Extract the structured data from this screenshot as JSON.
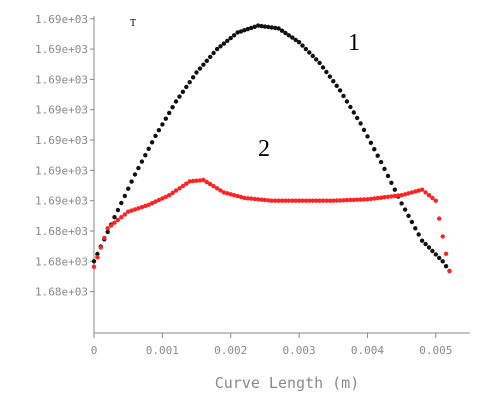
{
  "chart_data": {
    "type": "scatter",
    "xlabel": "Curve Length (m)",
    "ylabel": "",
    "xlim": [
      0,
      0.0055
    ],
    "ylim": [
      1675,
      1698
    ],
    "x_ticks": [
      0,
      0.001,
      0.002,
      0.003,
      0.004,
      0.005
    ],
    "x_tick_labels": [
      "0",
      "0.001",
      "0.002",
      "0.003",
      "0.004",
      "0.005"
    ],
    "y_ticks": [
      1678,
      1680.2,
      1682.4,
      1684.6,
      1686.8,
      1689,
      1691.2,
      1693.4,
      1695.6,
      1697.8
    ],
    "y_tick_labels": [
      "1.68e+03",
      "1.68e+03",
      "1.68e+03",
      "1.69e+03",
      "1.69e+03",
      "1.69e+03",
      "1.69e+03",
      "1.69e+03",
      "1.69e+03",
      "1.69e+03"
    ],
    "annotations": {
      "corner": "T",
      "curve1": "1",
      "curve2": "2"
    },
    "series": [
      {
        "color": "#111111",
        "x": [
          0.0,
          0.0003,
          0.0006,
          0.0009,
          0.0012,
          0.0015,
          0.0018,
          0.0021,
          0.0024,
          0.0027,
          0.003,
          0.0033,
          0.0036,
          0.0039,
          0.0042,
          0.0045,
          0.0048,
          0.0051,
          0.0052
        ],
        "y": [
          1680.2,
          1683.4,
          1686.5,
          1689.3,
          1691.8,
          1693.9,
          1695.6,
          1696.8,
          1697.3,
          1697.1,
          1696.1,
          1694.6,
          1692.6,
          1690.2,
          1687.4,
          1684.4,
          1681.7,
          1680.2,
          1679.5
        ]
      },
      {
        "color": "#ff2222",
        "x": [
          0.0,
          0.0002,
          0.0005,
          0.0008,
          0.0011,
          0.0014,
          0.0016,
          0.0019,
          0.0022,
          0.0026,
          0.003,
          0.0035,
          0.004,
          0.0045,
          0.0048,
          0.005,
          0.0051,
          0.0052
        ],
        "y": [
          1679.8,
          1682.6,
          1683.8,
          1684.3,
          1685.0,
          1686.0,
          1686.1,
          1685.2,
          1684.8,
          1684.6,
          1684.6,
          1684.6,
          1684.7,
          1685.0,
          1685.4,
          1684.6,
          1682.0,
          1679.5
        ]
      }
    ]
  }
}
